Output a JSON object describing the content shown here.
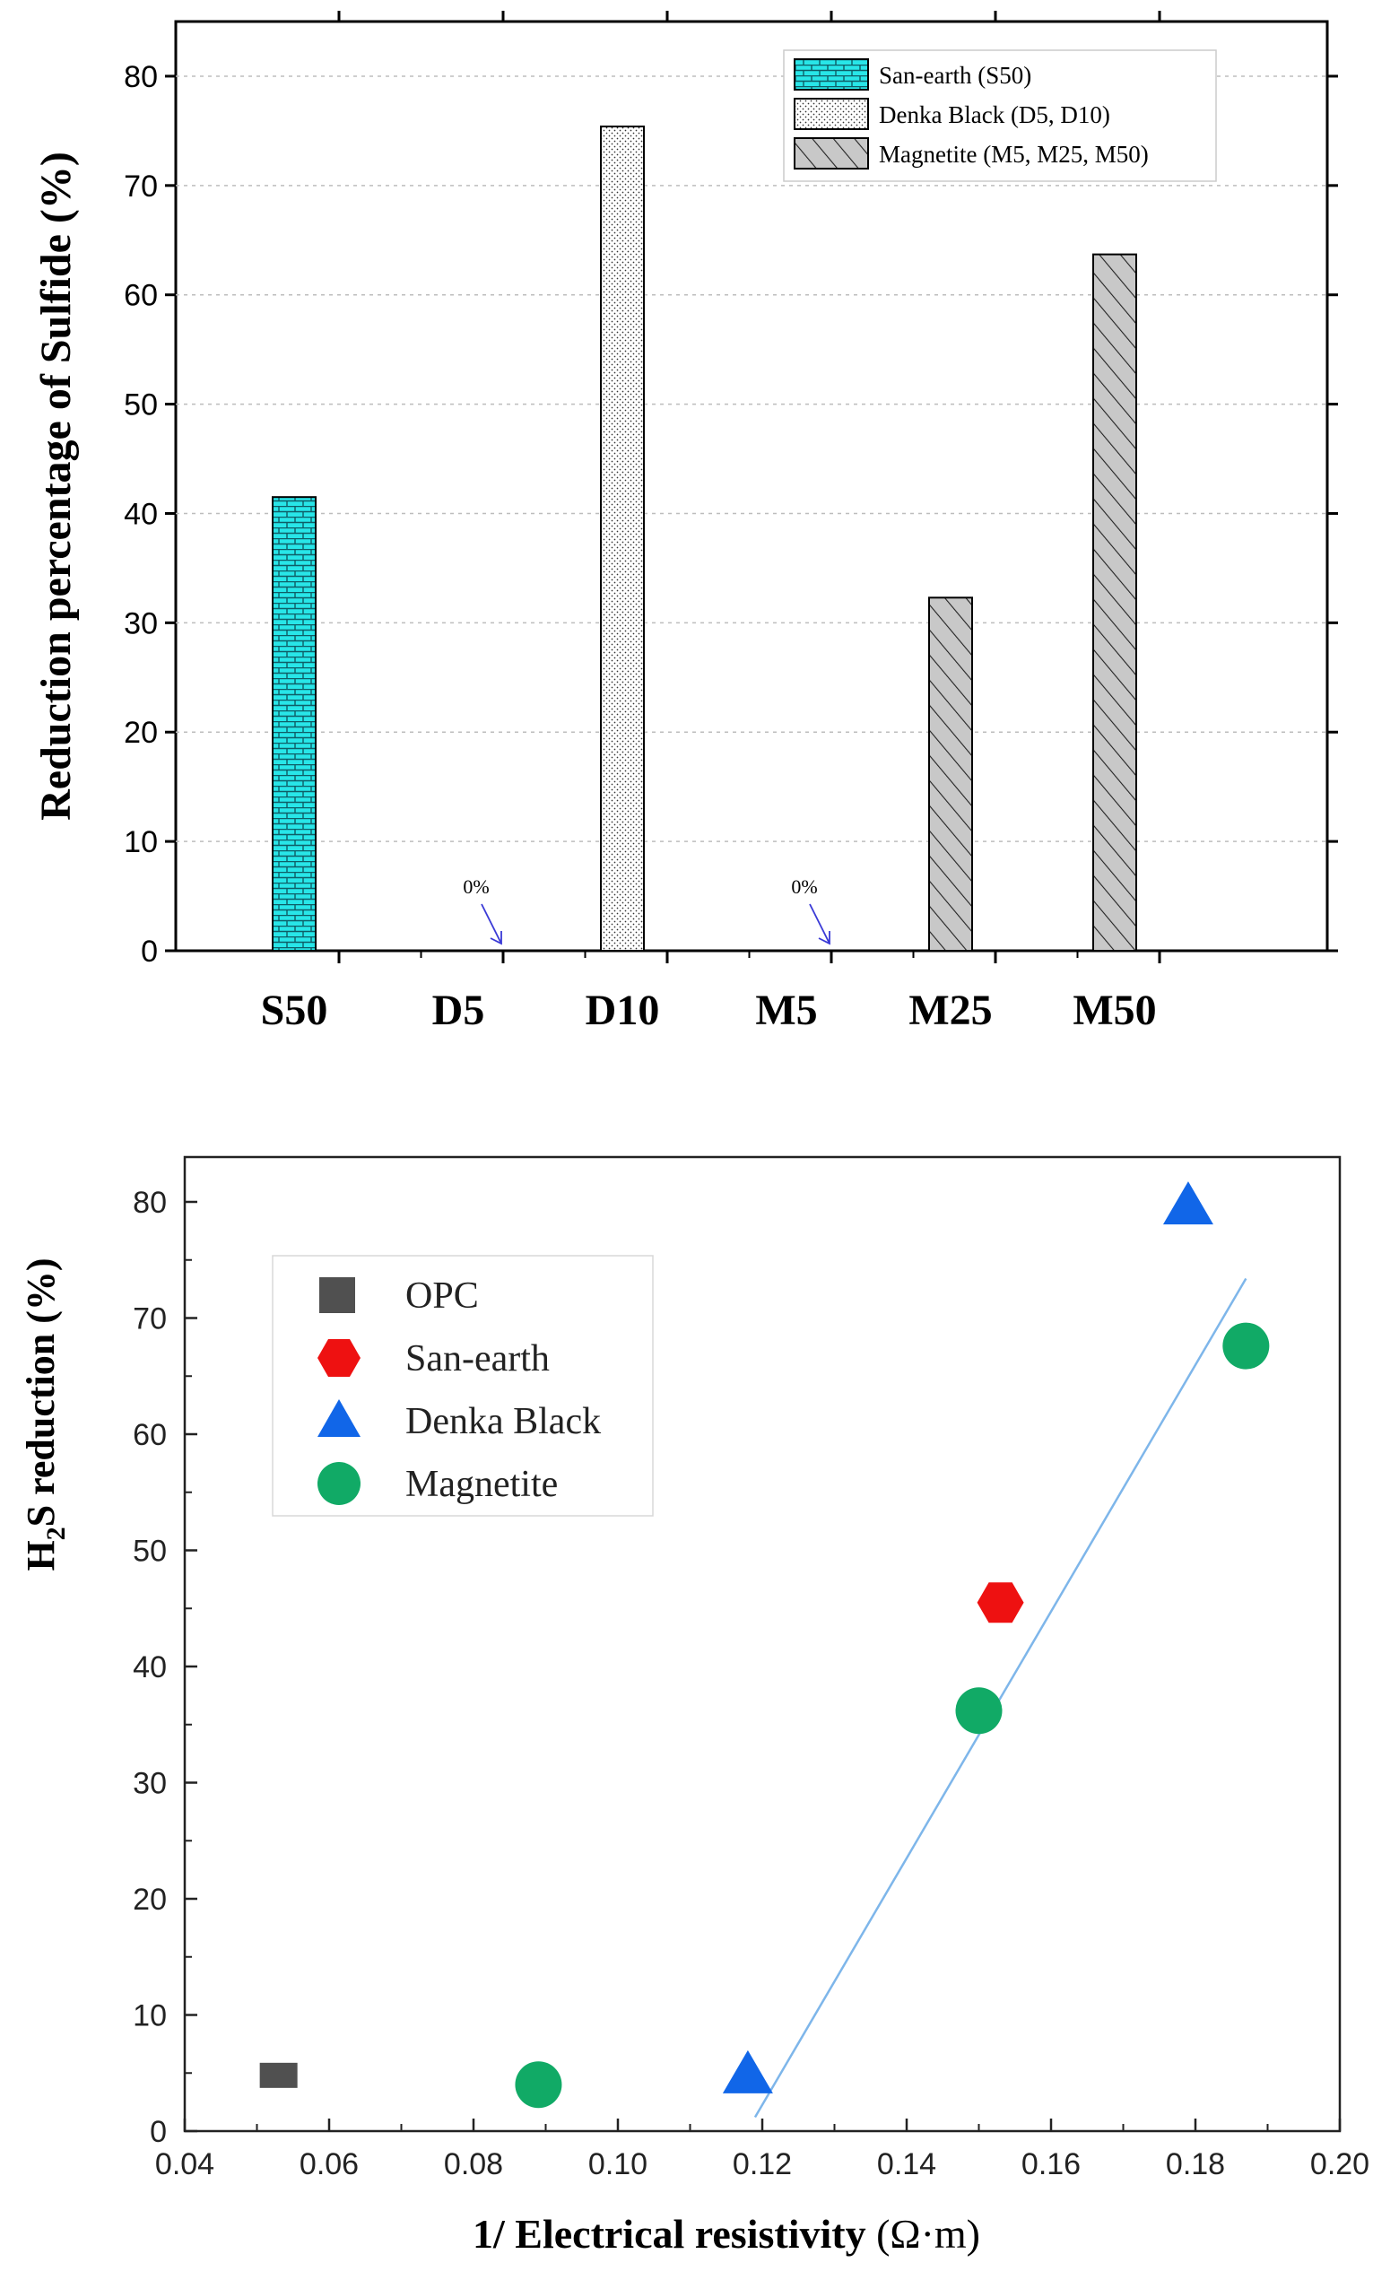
{
  "chart_data": [
    {
      "type": "bar",
      "title": "",
      "xlabel": "",
      "ylabel": "Reduction percentage of Sulfide (%)",
      "ylim": [
        0,
        85
      ],
      "yticks": [
        0,
        10,
        20,
        30,
        40,
        50,
        60,
        70,
        80
      ],
      "categories": [
        "S50",
        "D5",
        "D10",
        "M5",
        "M25",
        "M50"
      ],
      "values": [
        41.5,
        0,
        75.4,
        0,
        32.3,
        63.7
      ],
      "series_of_bar": [
        "San-earth (S50)",
        "Denka Black (D5, D10)",
        "Denka Black (D5, D10)",
        "Magnetite (M5, M25, M50)",
        "Magnetite (M5, M25, M50)",
        "Magnetite (M5, M25, M50)"
      ],
      "legend": [
        {
          "label": "San-earth (S50)",
          "color": "#28e6e8"
        },
        {
          "label": "Denka Black (D5, D10)",
          "color": "#ffffff"
        },
        {
          "label": "Magnetite (M5, M25, M50)",
          "color": "#c8c8c8"
        }
      ],
      "annotations": [
        {
          "category": "D5",
          "text": "0%"
        },
        {
          "category": "M5",
          "text": "0%"
        }
      ],
      "legend_position": "top-right",
      "arrow_color": "#3a3ad6"
    },
    {
      "type": "scatter",
      "title": "",
      "xlabel_main": "1/ Electrical resistivity",
      "xlabel_unit": "(Ω·m)",
      "ylabel_main": "H",
      "ylabel_sub": "2",
      "ylabel_rest": "S reduction (%)",
      "xlim": [
        0.04,
        0.2
      ],
      "ylim": [
        0,
        83
      ],
      "xticks": [
        "0.04",
        "0.06",
        "0.08",
        "0.10",
        "0.12",
        "0.14",
        "0.16",
        "0.18",
        "0.20"
      ],
      "yticks": [
        0,
        10,
        20,
        30,
        40,
        50,
        60,
        70,
        80
      ],
      "series": [
        {
          "name": "OPC",
          "marker": "square",
          "color": "#505050",
          "points": [
            [
              0.053,
              4.8
            ]
          ]
        },
        {
          "name": "San-earth",
          "marker": "hexagon",
          "color": "#ee1111",
          "points": [
            [
              0.153,
              45.5
            ]
          ]
        },
        {
          "name": "Denka Black",
          "marker": "triangle",
          "color": "#1166e8",
          "points": [
            [
              0.118,
              4.8
            ],
            [
              0.179,
              79.6
            ]
          ]
        },
        {
          "name": "Magnetite",
          "marker": "circle",
          "color": "#11aa66",
          "points": [
            [
              0.089,
              4.0
            ],
            [
              0.15,
              36.2
            ],
            [
              0.187,
              67.6
            ]
          ]
        }
      ],
      "fit_line": {
        "color": "#7eb6ea",
        "points": [
          [
            0.119,
            1.2
          ],
          [
            0.187,
            73.4
          ]
        ]
      },
      "legend_position": "top-left"
    }
  ]
}
